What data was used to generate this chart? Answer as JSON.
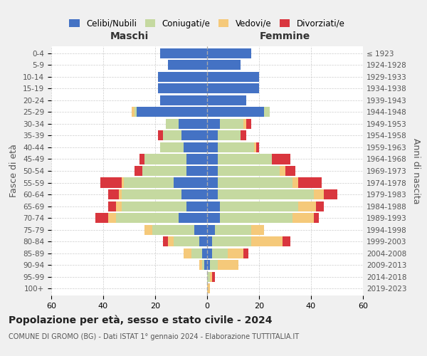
{
  "age_groups": [
    "0-4",
    "5-9",
    "10-14",
    "15-19",
    "20-24",
    "25-29",
    "30-34",
    "35-39",
    "40-44",
    "45-49",
    "50-54",
    "55-59",
    "60-64",
    "65-69",
    "70-74",
    "75-79",
    "80-84",
    "85-89",
    "90-94",
    "95-99",
    "100+"
  ],
  "birth_years": [
    "2019-2023",
    "2014-2018",
    "2009-2013",
    "2004-2008",
    "1999-2003",
    "1994-1998",
    "1989-1993",
    "1984-1988",
    "1979-1983",
    "1974-1978",
    "1969-1973",
    "1964-1968",
    "1959-1963",
    "1954-1958",
    "1949-1953",
    "1944-1948",
    "1939-1943",
    "1934-1938",
    "1929-1933",
    "1924-1928",
    "≤ 1923"
  ],
  "colors": {
    "celibe": "#4472C4",
    "coniugato": "#c5d9a0",
    "vedovo": "#f5c97a",
    "divorziato": "#d9363e"
  },
  "maschi": {
    "celibe": [
      18,
      15,
      19,
      19,
      18,
      27,
      11,
      10,
      9,
      8,
      8,
      13,
      10,
      8,
      11,
      5,
      3,
      2,
      1,
      0,
      0
    ],
    "coniugato": [
      0,
      0,
      0,
      0,
      0,
      1,
      5,
      7,
      9,
      16,
      17,
      19,
      23,
      25,
      24,
      16,
      10,
      4,
      1,
      0,
      0
    ],
    "vedovo": [
      0,
      0,
      0,
      0,
      0,
      1,
      0,
      0,
      0,
      0,
      0,
      1,
      1,
      2,
      3,
      3,
      2,
      3,
      1,
      0,
      0
    ],
    "divorziato": [
      0,
      0,
      0,
      0,
      0,
      0,
      0,
      2,
      0,
      2,
      3,
      8,
      4,
      3,
      5,
      0,
      2,
      0,
      0,
      0,
      0
    ]
  },
  "femmine": {
    "nubile": [
      17,
      13,
      20,
      20,
      15,
      22,
      5,
      4,
      4,
      4,
      4,
      4,
      4,
      5,
      5,
      3,
      2,
      2,
      1,
      0,
      0
    ],
    "coniugata": [
      0,
      0,
      0,
      0,
      0,
      2,
      9,
      9,
      14,
      21,
      24,
      29,
      37,
      30,
      28,
      14,
      15,
      6,
      3,
      1,
      0
    ],
    "vedova": [
      0,
      0,
      0,
      0,
      0,
      0,
      1,
      0,
      1,
      0,
      2,
      2,
      4,
      7,
      8,
      5,
      12,
      6,
      8,
      1,
      1
    ],
    "divorziata": [
      0,
      0,
      0,
      0,
      0,
      0,
      2,
      2,
      1,
      7,
      4,
      9,
      5,
      3,
      2,
      0,
      3,
      2,
      0,
      1,
      0
    ]
  },
  "xlim": 60,
  "title": "Popolazione per età, sesso e stato civile - 2024",
  "subtitle": "COMUNE DI GROMO (BG) - Dati ISTAT 1° gennaio 2024 - Elaborazione TUTTITALIA.IT",
  "ylabel_left": "Fasce di età",
  "ylabel_right": "Anni di nascita",
  "xlabel_maschi": "Maschi",
  "xlabel_femmine": "Femmine",
  "legend_labels": [
    "Celibi/Nubili",
    "Coniugati/e",
    "Vedovi/e",
    "Divorziati/e"
  ],
  "bg_color": "#f0f0f0",
  "plot_bg_color": "#ffffff",
  "grid_color": "#cccccc"
}
